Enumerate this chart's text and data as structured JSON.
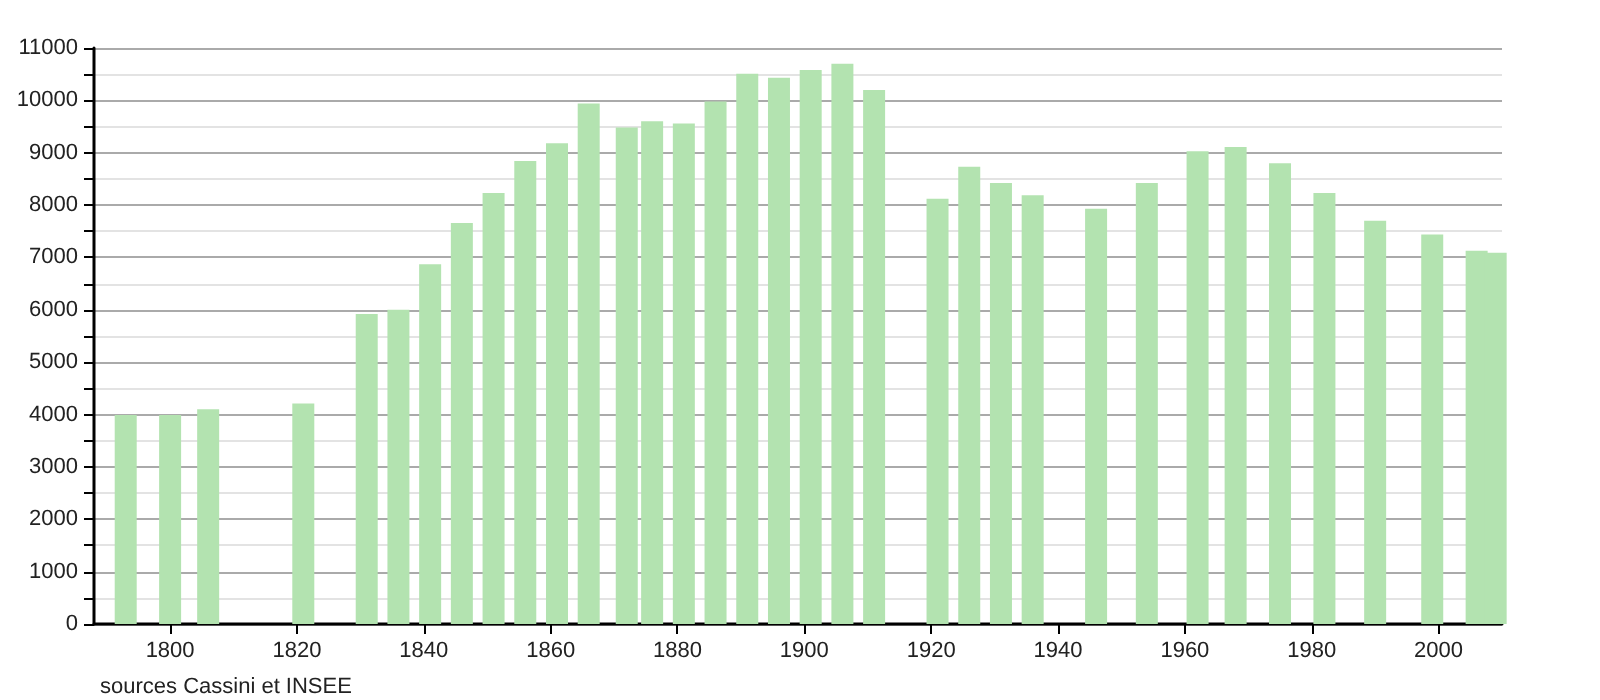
{
  "chart_data": {
    "type": "bar",
    "x": [
      1793,
      1800,
      1806,
      1821,
      1831,
      1836,
      1841,
      1846,
      1851,
      1856,
      1861,
      1866,
      1872,
      1876,
      1881,
      1886,
      1891,
      1896,
      1901,
      1906,
      1911,
      1921,
      1926,
      1931,
      1936,
      1946,
      1954,
      1962,
      1968,
      1975,
      1982,
      1990,
      1999,
      2006,
      2009
    ],
    "values": [
      3990,
      3990,
      4100,
      4210,
      5920,
      6000,
      6870,
      7660,
      8230,
      8840,
      9180,
      9940,
      9480,
      9600,
      9560,
      9980,
      10510,
      10430,
      10580,
      10700,
      10200,
      8120,
      8730,
      8420,
      8190,
      7930,
      8420,
      9030,
      9110,
      8800,
      8230,
      7700,
      7440,
      7130,
      7090
    ],
    "color": "#b3e3b0",
    "xlim": [
      1788,
      2010
    ],
    "xticks": [
      1800,
      1820,
      1840,
      1860,
      1880,
      1900,
      1920,
      1940,
      1960,
      1980,
      2000
    ],
    "ylim": [
      0,
      11000
    ],
    "yticks": [
      0,
      {
        "value": 500,
        "label": null
      },
      1000,
      {
        "value": 1500,
        "label": null
      },
      2000,
      {
        "value": 2500,
        "label": null
      },
      3000,
      {
        "value": 3500,
        "label": null
      },
      4000,
      {
        "value": 4500,
        "label": null
      },
      5000,
      {
        "value": 5500,
        "label": null
      },
      6000,
      {
        "value": 6500,
        "label": null
      },
      7000,
      {
        "value": 7500,
        "label": null
      },
      8000,
      {
        "value": 8500,
        "label": null
      },
      9000,
      {
        "value": 9500,
        "label": null
      },
      10000,
      {
        "value": 10500,
        "label": null
      },
      11000
    ],
    "grid": "y",
    "annotations": [
      "sources Cassini et INSEE"
    ]
  }
}
